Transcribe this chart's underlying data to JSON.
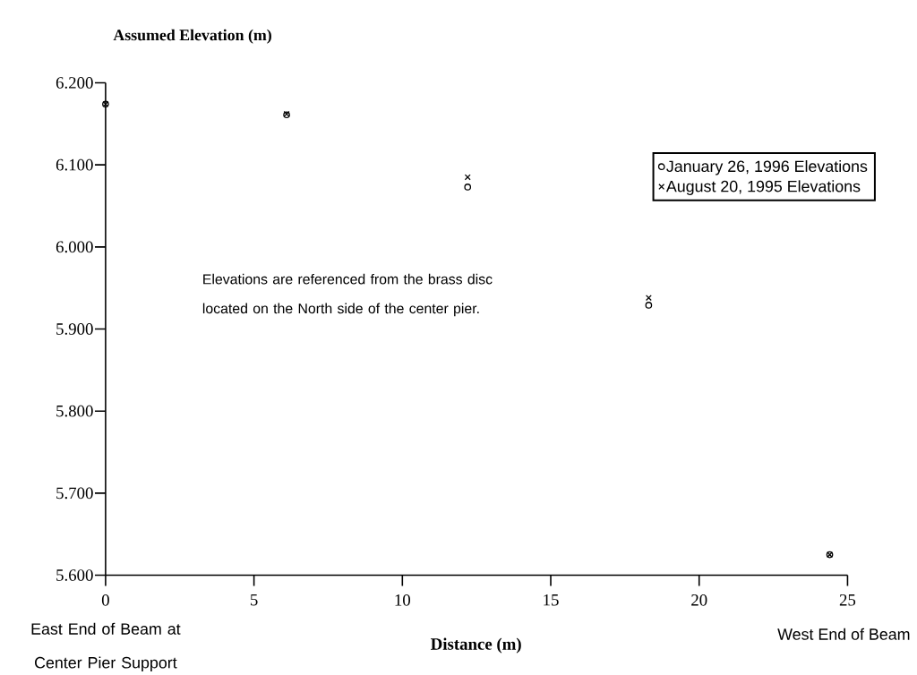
{
  "chart_data": {
    "type": "scatter",
    "ylabel": "Assumed Elevation (m)",
    "xlabel": "Distance (m)",
    "annotations": [
      "Elevations are referenced from the brass disc located on the North side of the center pier.",
      "East End of Beam at Center Pier Support",
      "West End of Beam"
    ],
    "x": [
      0,
      6.1,
      12.2,
      18.3,
      24.4
    ],
    "series": [
      {
        "name": "January 26, 1996 Elevations",
        "color": "#000000",
        "marker": "circle",
        "values": [
          6.174,
          6.161,
          6.073,
          5.929,
          5.625
        ]
      },
      {
        "name": "August 20, 1995 Elevations",
        "color": "#000000",
        "marker": "cross",
        "values": [
          6.174,
          6.162,
          6.085,
          5.938,
          5.625
        ]
      }
    ],
    "xlim": [
      0,
      25
    ],
    "xticks": [
      0,
      5,
      10,
      15,
      20,
      25
    ],
    "ylim": [
      5.6,
      6.2
    ],
    "yticks": [
      {
        "value": 5.6,
        "label": "5.600"
      },
      {
        "value": 5.7,
        "label": "5.700"
      },
      {
        "value": 5.8,
        "label": "5.800"
      },
      {
        "value": 5.9,
        "label": "5.900"
      },
      {
        "value": 6.0,
        "label": "6.000"
      },
      {
        "value": 6.1,
        "label": "6.100"
      },
      {
        "value": 6.2,
        "label": "6.200"
      }
    ],
    "grid": false,
    "legend": "top right"
  }
}
